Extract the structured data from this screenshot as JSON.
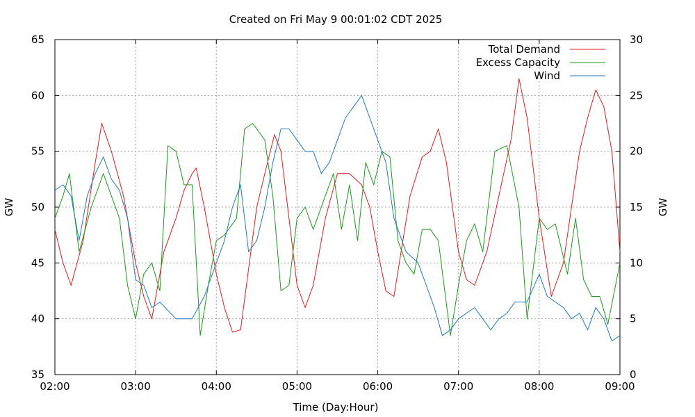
{
  "chart_data": {
    "type": "line",
    "title": "Created on Fri May  9 00:01:02 CDT 2025",
    "xlabel": "Time (Day:Hour)",
    "ylabel": "GW",
    "y2label": "GW",
    "xlim": [
      2,
      9
    ],
    "ylim": [
      35,
      65
    ],
    "y2lim": [
      0,
      30
    ],
    "xticks": [
      {
        "value": 2,
        "label": "02:00"
      },
      {
        "value": 3,
        "label": "03:00"
      },
      {
        "value": 4,
        "label": "04:00"
      },
      {
        "value": 5,
        "label": "05:00"
      },
      {
        "value": 6,
        "label": "06:00"
      },
      {
        "value": 7,
        "label": "07:00"
      },
      {
        "value": 8,
        "label": "08:00"
      },
      {
        "value": 9,
        "label": "09:00"
      }
    ],
    "yticks": [
      35,
      40,
      45,
      50,
      55,
      60,
      65
    ],
    "y2ticks": [
      0,
      5,
      10,
      15,
      20,
      25,
      30
    ],
    "grid": true,
    "legend_position": "top-right",
    "series": [
      {
        "name": "Total Demand",
        "axis": "left",
        "color": "#e41a1c",
        "x": [
          2.0,
          2.1,
          2.2,
          2.35,
          2.5,
          2.58,
          2.7,
          2.85,
          3.0,
          3.1,
          3.2,
          3.35,
          3.5,
          3.6,
          3.7,
          3.75,
          3.85,
          4.0,
          4.1,
          4.2,
          4.3,
          4.5,
          4.6,
          4.72,
          4.8,
          4.9,
          5.0,
          5.1,
          5.2,
          5.35,
          5.5,
          5.65,
          5.8,
          5.9,
          6.0,
          6.1,
          6.2,
          6.4,
          6.55,
          6.65,
          6.75,
          6.85,
          7.0,
          7.1,
          7.2,
          7.35,
          7.5,
          7.65,
          7.75,
          7.85,
          8.0,
          8.15,
          8.3,
          8.5,
          8.6,
          8.7,
          8.8,
          8.9,
          9.0
        ],
        "values": [
          48,
          45,
          43,
          47,
          54,
          57.5,
          55,
          51,
          45,
          42,
          40,
          46,
          49,
          51.5,
          53,
          53.5,
          50,
          44,
          41,
          38.8,
          39,
          50,
          53,
          56.5,
          55,
          49,
          43,
          41,
          43,
          49,
          53,
          53,
          52,
          50,
          46,
          42.5,
          42,
          51,
          54.5,
          55,
          57,
          54,
          46,
          43.5,
          43,
          46,
          51,
          56,
          61.5,
          58,
          49,
          42,
          45,
          55,
          58,
          60.5,
          59,
          55,
          46
        ]
      },
      {
        "name": "Excess Capacity",
        "axis": "right",
        "color": "#1a9a1a",
        "x": [
          2.0,
          2.1,
          2.18,
          2.3,
          2.45,
          2.6,
          2.7,
          2.8,
          2.9,
          3.0,
          3.1,
          3.2,
          3.3,
          3.4,
          3.5,
          3.6,
          3.7,
          3.8,
          3.9,
          4.0,
          4.1,
          4.25,
          4.35,
          4.45,
          4.6,
          4.7,
          4.8,
          4.9,
          5.0,
          5.1,
          5.2,
          5.35,
          5.45,
          5.55,
          5.65,
          5.75,
          5.85,
          5.95,
          6.05,
          6.15,
          6.25,
          6.35,
          6.45,
          6.55,
          6.65,
          6.75,
          6.9,
          7.0,
          7.1,
          7.2,
          7.3,
          7.45,
          7.6,
          7.75,
          7.85,
          8.0,
          8.1,
          8.2,
          8.35,
          8.45,
          8.55,
          8.65,
          8.75,
          8.85,
          9.0
        ],
        "values": [
          14,
          16,
          18,
          11,
          15,
          18,
          16,
          14,
          8,
          5,
          9,
          10,
          7.5,
          20.5,
          20,
          17,
          17,
          3.5,
          8,
          12,
          12.5,
          14,
          22,
          22.5,
          21,
          16,
          7.5,
          8,
          14,
          15,
          13,
          16,
          18,
          13,
          17,
          12,
          19,
          17,
          20,
          19.5,
          12,
          10,
          9,
          13,
          13,
          12,
          3.5,
          8,
          12,
          13.5,
          11,
          20,
          20.5,
          15,
          5,
          14,
          13,
          13.5,
          9,
          14,
          8.5,
          7,
          7,
          4.5,
          10
        ]
      },
      {
        "name": "Wind",
        "axis": "right",
        "color": "#1f77c4",
        "x": [
          2.0,
          2.1,
          2.2,
          2.3,
          2.4,
          2.5,
          2.6,
          2.7,
          2.8,
          2.9,
          3.0,
          3.1,
          3.2,
          3.3,
          3.5,
          3.7,
          3.85,
          4.0,
          4.1,
          4.2,
          4.3,
          4.4,
          4.5,
          4.6,
          4.7,
          4.8,
          4.9,
          5.0,
          5.1,
          5.2,
          5.3,
          5.4,
          5.5,
          5.6,
          5.7,
          5.8,
          5.9,
          6.0,
          6.1,
          6.2,
          6.35,
          6.5,
          6.6,
          6.7,
          6.8,
          6.9,
          7.0,
          7.1,
          7.2,
          7.4,
          7.5,
          7.6,
          7.7,
          7.85,
          8.0,
          8.1,
          8.2,
          8.3,
          8.4,
          8.5,
          8.6,
          8.7,
          8.8,
          8.9,
          9.0
        ],
        "values": [
          16.5,
          17,
          16,
          12,
          16,
          18,
          19.5,
          17.5,
          16.5,
          14,
          8.5,
          8,
          6,
          6.5,
          5,
          5,
          7,
          10,
          12,
          15,
          17,
          11,
          12,
          15,
          19,
          22,
          22,
          21,
          20,
          20,
          18,
          19,
          21,
          23,
          24,
          25,
          23,
          21,
          19,
          14,
          11,
          10,
          8,
          6,
          3.5,
          4,
          5,
          5.5,
          6,
          4,
          5,
          5.5,
          6.5,
          6.5,
          9,
          7,
          6.5,
          6,
          5,
          5.5,
          4,
          6,
          5,
          3,
          3.5
        ]
      }
    ]
  }
}
